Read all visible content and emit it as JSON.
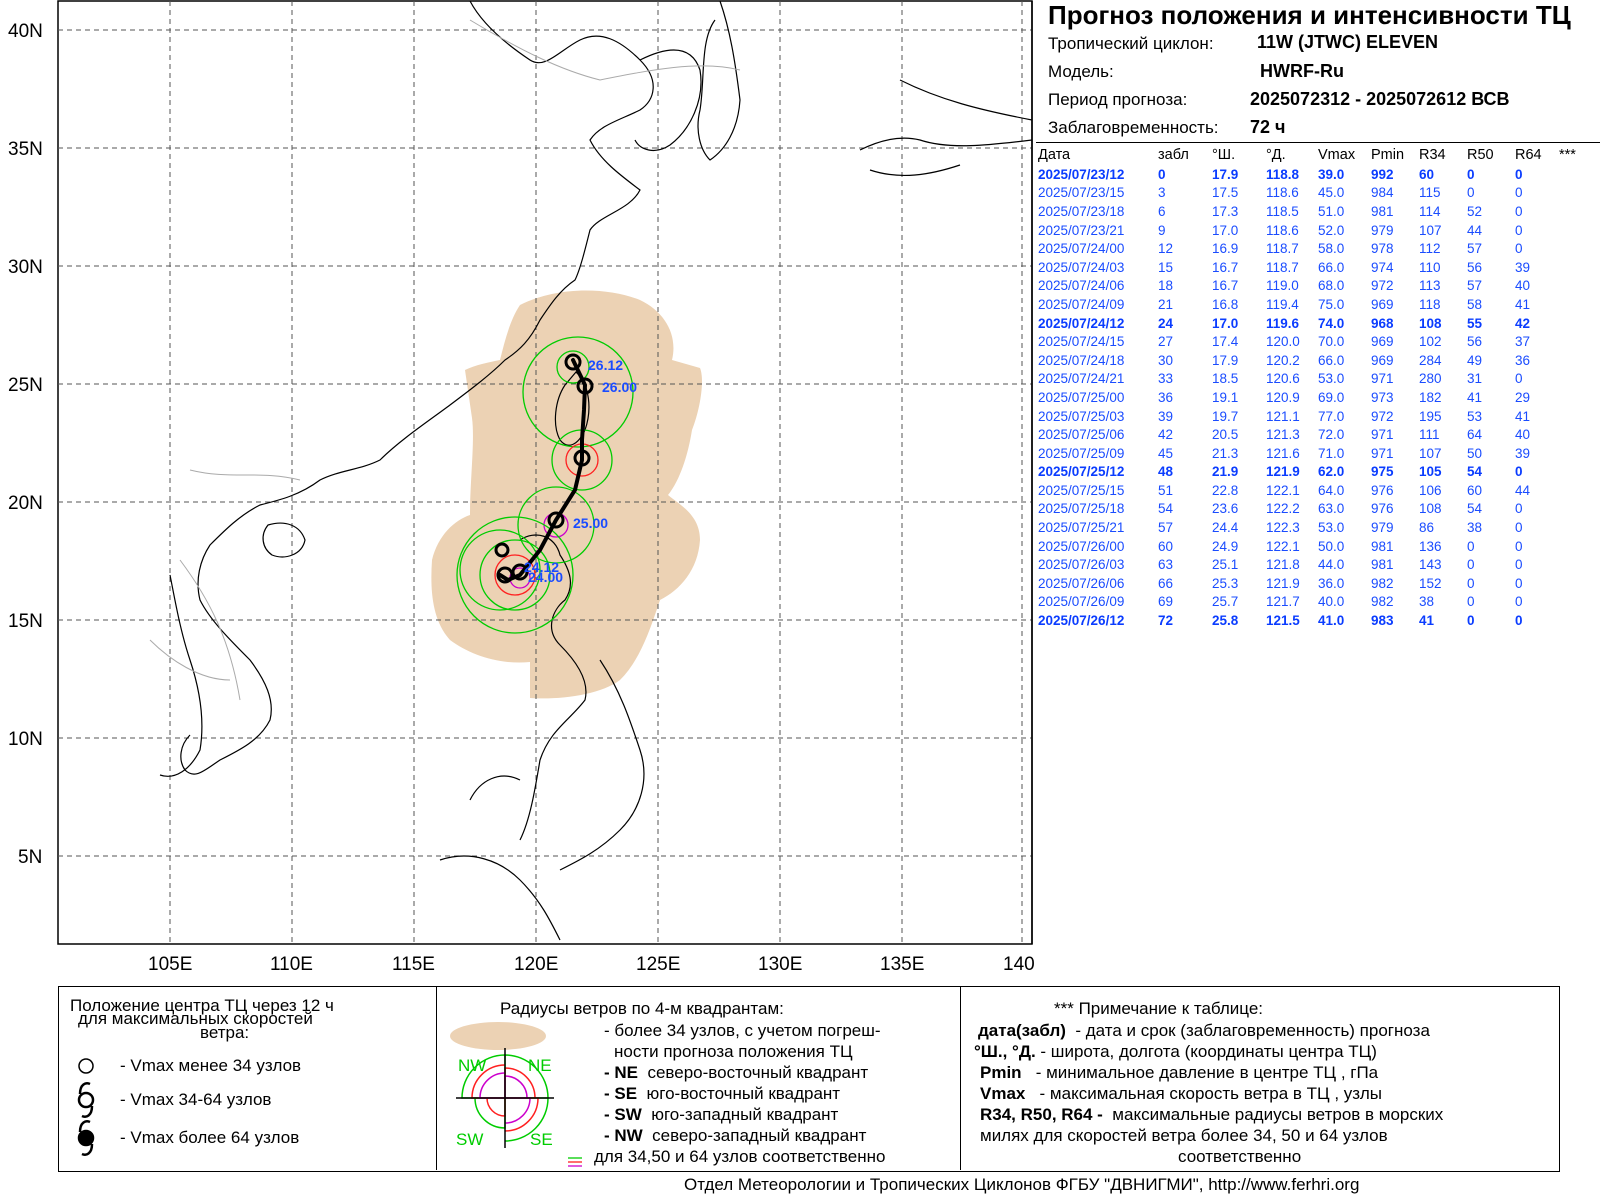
{
  "header": {
    "title": "Прогноз положения и интенсивности ТЦ",
    "cyclone_label": "Тропический циклон:",
    "cyclone_value": "11W (JTWC)  ELEVEN",
    "model_label": "Модель:",
    "model_value": "HWRF-Ru",
    "period_label": "Период прогноза:",
    "period_value": "2025072312 - 2025072612 ВСВ",
    "lead_label": "Заблаговременность:",
    "lead_value": "72 ч"
  },
  "table": {
    "headers": [
      "Дата",
      "забл",
      "°Ш.",
      "°Д.",
      "Vmax",
      "Pmin",
      "R34",
      "R50",
      "R64",
      "***"
    ],
    "rows": [
      {
        "date": "2025/07/23/12",
        "lead": "0",
        "lat": "17.9",
        "lon": "118.8",
        "vmax": "39.0",
        "pmin": "992",
        "r34": "60",
        "r50": "0",
        "r64": "0",
        "bold": true
      },
      {
        "date": "2025/07/23/15",
        "lead": "3",
        "lat": "17.5",
        "lon": "118.6",
        "vmax": "45.0",
        "pmin": "984",
        "r34": "115",
        "r50": "0",
        "r64": "0",
        "bold": false
      },
      {
        "date": "2025/07/23/18",
        "lead": "6",
        "lat": "17.3",
        "lon": "118.5",
        "vmax": "51.0",
        "pmin": "981",
        "r34": "114",
        "r50": "52",
        "r64": "0",
        "bold": false
      },
      {
        "date": "2025/07/23/21",
        "lead": "9",
        "lat": "17.0",
        "lon": "118.6",
        "vmax": "52.0",
        "pmin": "979",
        "r34": "107",
        "r50": "44",
        "r64": "0",
        "bold": false
      },
      {
        "date": "2025/07/24/00",
        "lead": "12",
        "lat": "16.9",
        "lon": "118.7",
        "vmax": "58.0",
        "pmin": "978",
        "r34": "112",
        "r50": "57",
        "r64": "0",
        "bold": false
      },
      {
        "date": "2025/07/24/03",
        "lead": "15",
        "lat": "16.7",
        "lon": "118.7",
        "vmax": "66.0",
        "pmin": "974",
        "r34": "110",
        "r50": "56",
        "r64": "39",
        "bold": false
      },
      {
        "date": "2025/07/24/06",
        "lead": "18",
        "lat": "16.7",
        "lon": "119.0",
        "vmax": "68.0",
        "pmin": "972",
        "r34": "113",
        "r50": "57",
        "r64": "40",
        "bold": false
      },
      {
        "date": "2025/07/24/09",
        "lead": "21",
        "lat": "16.8",
        "lon": "119.4",
        "vmax": "75.0",
        "pmin": "969",
        "r34": "118",
        "r50": "58",
        "r64": "41",
        "bold": false
      },
      {
        "date": "2025/07/24/12",
        "lead": "24",
        "lat": "17.0",
        "lon": "119.6",
        "vmax": "74.0",
        "pmin": "968",
        "r34": "108",
        "r50": "55",
        "r64": "42",
        "bold": true
      },
      {
        "date": "2025/07/24/15",
        "lead": "27",
        "lat": "17.4",
        "lon": "120.0",
        "vmax": "70.0",
        "pmin": "969",
        "r34": "102",
        "r50": "56",
        "r64": "37",
        "bold": false
      },
      {
        "date": "2025/07/24/18",
        "lead": "30",
        "lat": "17.9",
        "lon": "120.2",
        "vmax": "66.0",
        "pmin": "969",
        "r34": "284",
        "r50": "49",
        "r64": "36",
        "bold": false
      },
      {
        "date": "2025/07/24/21",
        "lead": "33",
        "lat": "18.5",
        "lon": "120.6",
        "vmax": "53.0",
        "pmin": "971",
        "r34": "280",
        "r50": "31",
        "r64": "0",
        "bold": false
      },
      {
        "date": "2025/07/25/00",
        "lead": "36",
        "lat": "19.1",
        "lon": "120.9",
        "vmax": "69.0",
        "pmin": "973",
        "r34": "182",
        "r50": "41",
        "r64": "29",
        "bold": false
      },
      {
        "date": "2025/07/25/03",
        "lead": "39",
        "lat": "19.7",
        "lon": "121.1",
        "vmax": "77.0",
        "pmin": "972",
        "r34": "195",
        "r50": "53",
        "r64": "41",
        "bold": false
      },
      {
        "date": "2025/07/25/06",
        "lead": "42",
        "lat": "20.5",
        "lon": "121.3",
        "vmax": "72.0",
        "pmin": "971",
        "r34": "111",
        "r50": "64",
        "r64": "40",
        "bold": false
      },
      {
        "date": "2025/07/25/09",
        "lead": "45",
        "lat": "21.3",
        "lon": "121.6",
        "vmax": "71.0",
        "pmin": "971",
        "r34": "107",
        "r50": "50",
        "r64": "39",
        "bold": false
      },
      {
        "date": "2025/07/25/12",
        "lead": "48",
        "lat": "21.9",
        "lon": "121.9",
        "vmax": "62.0",
        "pmin": "975",
        "r34": "105",
        "r50": "54",
        "r64": "0",
        "bold": true
      },
      {
        "date": "2025/07/25/15",
        "lead": "51",
        "lat": "22.8",
        "lon": "122.1",
        "vmax": "64.0",
        "pmin": "976",
        "r34": "106",
        "r50": "60",
        "r64": "44",
        "bold": false
      },
      {
        "date": "2025/07/25/18",
        "lead": "54",
        "lat": "23.6",
        "lon": "122.2",
        "vmax": "63.0",
        "pmin": "976",
        "r34": "108",
        "r50": "54",
        "r64": "0",
        "bold": false
      },
      {
        "date": "2025/07/25/21",
        "lead": "57",
        "lat": "24.4",
        "lon": "122.3",
        "vmax": "53.0",
        "pmin": "979",
        "r34": "86",
        "r50": "38",
        "r64": "0",
        "bold": false
      },
      {
        "date": "2025/07/26/00",
        "lead": "60",
        "lat": "24.9",
        "lon": "122.1",
        "vmax": "50.0",
        "pmin": "981",
        "r34": "136",
        "r50": "0",
        "r64": "0",
        "bold": false
      },
      {
        "date": "2025/07/26/03",
        "lead": "63",
        "lat": "25.1",
        "lon": "121.8",
        "vmax": "44.0",
        "pmin": "981",
        "r34": "143",
        "r50": "0",
        "r64": "0",
        "bold": false
      },
      {
        "date": "2025/07/26/06",
        "lead": "66",
        "lat": "25.3",
        "lon": "121.9",
        "vmax": "36.0",
        "pmin": "982",
        "r34": "152",
        "r50": "0",
        "r64": "0",
        "bold": false
      },
      {
        "date": "2025/07/26/09",
        "lead": "69",
        "lat": "25.7",
        "lon": "121.7",
        "vmax": "40.0",
        "pmin": "982",
        "r34": "38",
        "r50": "0",
        "r64": "0",
        "bold": false
      },
      {
        "date": "2025/07/26/12",
        "lead": "72",
        "lat": "25.8",
        "lon": "121.5",
        "vmax": "41.0",
        "pmin": "983",
        "r34": "41",
        "r50": "0",
        "r64": "0",
        "bold": true
      }
    ]
  },
  "map": {
    "lat_labels": [
      "40N",
      "35N",
      "30N",
      "25N",
      "20N",
      "15N",
      "10N",
      "5N"
    ],
    "lon_labels": [
      "105E",
      "110E",
      "115E",
      "120E",
      "125E",
      "130E",
      "135E",
      "140"
    ],
    "track_labels": [
      "26.12",
      "26.00",
      "25.00",
      "24.12",
      "24.00"
    ],
    "colors": {
      "uncertainty": "#ecd2b4",
      "r34": "#00cc00",
      "r50": "#ff2020",
      "r64": "#cc00cc",
      "text": "#1a4cff"
    }
  },
  "legend": {
    "left_title": "Положение центра ТЦ через 12 ч для максимальных скоростей ветра:",
    "left_title_1": "Положение центра ТЦ через 12 ч",
    "left_title_2": "для максимальных скоростей",
    "left_title_3": "ветра:",
    "item1": "- Vmax   менее 34 узлов",
    "item2": "- Vmax   34-64 узлов",
    "item3": "- Vmax   более 64 узлов",
    "mid_title": "Радиусы ветров по 4-м квадрантам:",
    "mid_1": "- более 34 узлов, с учетом погреш-",
    "mid_2": "ности прогноза положения ТЦ",
    "ne_b": "- NE",
    "ne_t": "северо-восточный квадрант",
    "se_b": "- SE",
    "se_t": "юго-восточный квадрант",
    "sw_b": "- SW",
    "sw_t": "юго-западный квадрант",
    "nw_b": "- NW",
    "nw_t": "северо-западный квадрант",
    "mid_last": "для 34,50 и 64 узлов соответственно",
    "q_nw": "NW",
    "q_ne": "NE",
    "q_sw": "SW",
    "q_se": "SE",
    "right_title": "*** Примечание к таблице:",
    "r1_b": "дата(забл)",
    "r1_t": "- дата и срок (заблаговременность) прогноза",
    "r2_b": "°Ш., °Д.",
    "r2_t": "- широта, долгота   (координаты центра ТЦ)",
    "r3_b": "Pmin",
    "r3_t": "- минимальное давление в центре ТЦ , гПа",
    "r4_b": "Vmax",
    "r4_t": "-  максимальная скорость ветра в ТЦ , узлы",
    "r5_b": "R34, R50, R64 -",
    "r5_t": "максимальные радиусы ветров в морских",
    "r6": "милях для скоростей ветра более 34, 50 и 64 узлов",
    "r7": "соответственно"
  },
  "footer": "Отдел Метеорологии и Тропических Циклонов ФГБУ \"ДВНИГМИ\",  http://www.ferhri.org"
}
